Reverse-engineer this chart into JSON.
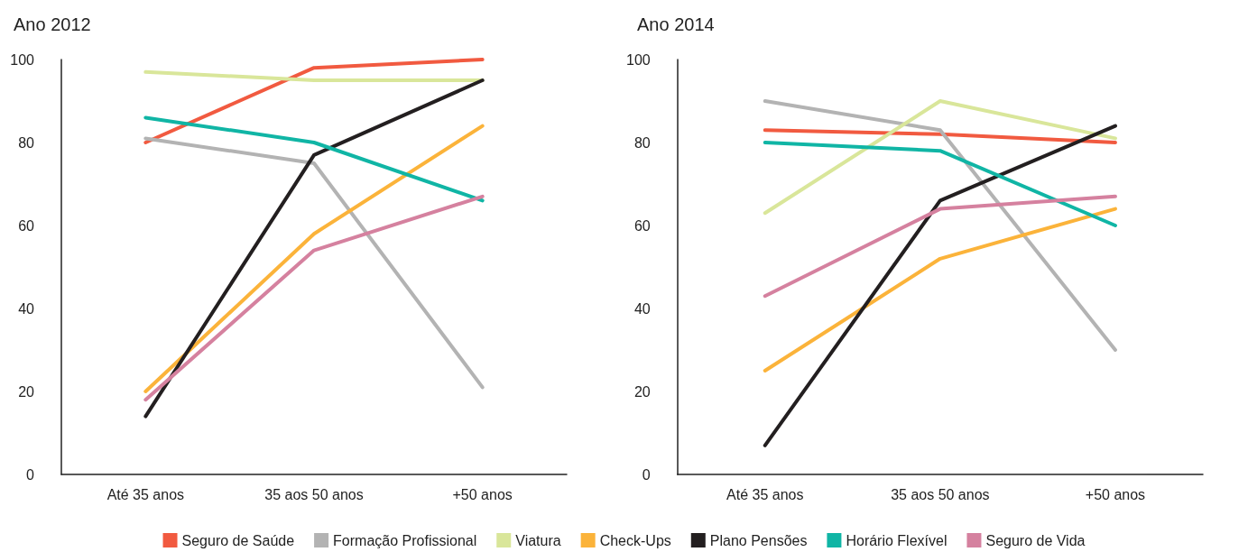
{
  "chart_data": [
    {
      "type": "line",
      "title": "Ano 2012",
      "categories": [
        "Até 35 anos",
        "35 aos 50 anos",
        "+50 anos"
      ],
      "ylim": [
        0,
        100
      ],
      "yticks": [
        0,
        20,
        40,
        60,
        80,
        100
      ],
      "grid": false,
      "legend": "bottom",
      "marker": "none",
      "line_style": "solid",
      "series": [
        {
          "name": "Seguro de Saúde",
          "color": "#f15a40",
          "values": [
            80,
            98,
            100
          ]
        },
        {
          "name": "Formação Profissional",
          "color": "#b3b3b3",
          "values": [
            81,
            75,
            21
          ]
        },
        {
          "name": "Viatura",
          "color": "#d9e69a",
          "values": [
            97,
            95,
            95
          ]
        },
        {
          "name": "Check-Ups",
          "color": "#fbb33a",
          "values": [
            20,
            58,
            84
          ]
        },
        {
          "name": "Plano Pensões",
          "color": "#231f20",
          "values": [
            14,
            77,
            95
          ]
        },
        {
          "name": "Horário Flexível",
          "color": "#10b5a5",
          "values": [
            86,
            80,
            66
          ]
        },
        {
          "name": "Seguro de Vida",
          "color": "#d5819f",
          "values": [
            18,
            54,
            67
          ]
        }
      ]
    },
    {
      "type": "line",
      "title": "Ano 2014",
      "categories": [
        "Até 35 anos",
        "35 aos 50 anos",
        "+50 anos"
      ],
      "ylim": [
        0,
        100
      ],
      "yticks": [
        0,
        20,
        40,
        60,
        80,
        100
      ],
      "grid": false,
      "marker": "none",
      "line_style": "solid",
      "series": [
        {
          "color": "#f15a40",
          "values": [
            83,
            82,
            80
          ]
        },
        {
          "color": "#b3b3b3",
          "values": [
            90,
            83,
            30
          ]
        },
        {
          "color": "#d9e69a",
          "values": [
            63,
            90,
            81
          ]
        },
        {
          "color": "#fbb33a",
          "values": [
            25,
            52,
            64
          ]
        },
        {
          "color": "#231f20",
          "values": [
            7,
            66,
            84
          ]
        },
        {
          "color": "#10b5a5",
          "values": [
            80,
            78,
            60
          ]
        },
        {
          "color": "#d5819f",
          "values": [
            43,
            64,
            67
          ]
        }
      ]
    }
  ]
}
